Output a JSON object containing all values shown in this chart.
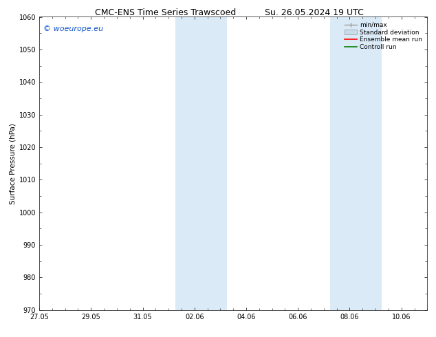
{
  "title_left": "CMC-ENS Time Series Trawscoed",
  "title_right": "Su. 26.05.2024 19 UTC",
  "ylabel": "Surface Pressure (hPa)",
  "ylim": [
    970,
    1060
  ],
  "yticks": [
    970,
    980,
    990,
    1000,
    1010,
    1020,
    1030,
    1040,
    1050,
    1060
  ],
  "xtick_labels": [
    "27.05",
    "29.05",
    "31.05",
    "02.06",
    "04.06",
    "06.06",
    "08.06",
    "10.06"
  ],
  "xtick_positions_days": [
    0,
    2,
    4,
    6,
    8,
    10,
    12,
    14
  ],
  "total_days": 15,
  "shaded_bands": [
    {
      "start_day": 5.25,
      "end_day": 7.25,
      "color": "#daeaf7"
    },
    {
      "start_day": 11.25,
      "end_day": 13.25,
      "color": "#daeaf7"
    }
  ],
  "watermark_text": "© woeurope.eu",
  "watermark_color": "#1155cc",
  "watermark_fontsize": 8,
  "legend_items": [
    {
      "label": "min/max",
      "color": "#999999",
      "type": "errorbar"
    },
    {
      "label": "Standard deviation",
      "color": "#c8dcea",
      "type": "fill"
    },
    {
      "label": "Ensemble mean run",
      "color": "red",
      "type": "line"
    },
    {
      "label": "Controll run",
      "color": "green",
      "type": "line"
    }
  ],
  "background_color": "#ffffff",
  "plot_bg_color": "#ffffff",
  "title_fontsize": 9,
  "axis_label_fontsize": 7.5,
  "tick_fontsize": 7,
  "legend_fontsize": 6.5
}
